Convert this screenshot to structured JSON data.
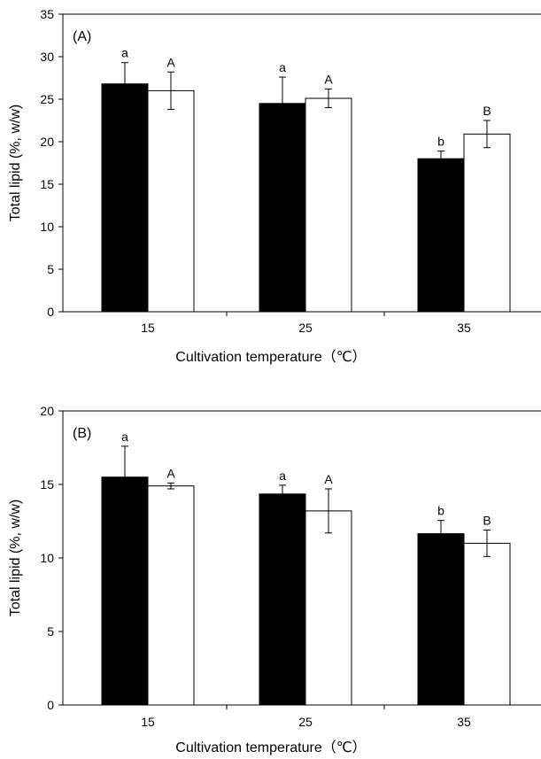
{
  "chart_data": [
    {
      "type": "bar",
      "panel_label": "(A)",
      "categories": [
        "15",
        "25",
        "35"
      ],
      "series": [
        {
          "color": "#000000",
          "values": [
            26.8,
            24.5,
            18.0
          ],
          "errors": [
            2.5,
            3.1,
            0.9
          ],
          "letters": [
            "a",
            "a",
            "b"
          ]
        },
        {
          "color": "#ffffff",
          "values": [
            26.0,
            25.1,
            20.9
          ],
          "errors": [
            2.2,
            1.1,
            1.6
          ],
          "letters": [
            "A",
            "A",
            "B"
          ]
        }
      ],
      "xlabel": "Cultivation temperature（℃）",
      "ylabel": "Total lipid (%, w/w)",
      "ylim": [
        0,
        35
      ],
      "yticks": [
        "0",
        "5",
        "10",
        "15",
        "20",
        "25",
        "30",
        "35"
      ],
      "grid": false
    },
    {
      "type": "bar",
      "panel_label": "(B)",
      "categories": [
        "15",
        "25",
        "35"
      ],
      "series": [
        {
          "color": "#000000",
          "values": [
            15.5,
            14.35,
            11.65
          ],
          "errors": [
            2.1,
            0.6,
            0.9
          ],
          "letters": [
            "a",
            "a",
            "b"
          ]
        },
        {
          "color": "#ffffff",
          "values": [
            14.9,
            13.2,
            11.0
          ],
          "errors": [
            0.2,
            1.5,
            0.9
          ],
          "letters": [
            "A",
            "A",
            "B"
          ]
        }
      ],
      "xlabel": "Cultivation temperature（℃）",
      "ylabel": "Total lipid (%, w/w)",
      "ylim": [
        0,
        20
      ],
      "yticks": [
        "0",
        "5",
        "10",
        "15",
        "20"
      ],
      "grid": false
    }
  ]
}
